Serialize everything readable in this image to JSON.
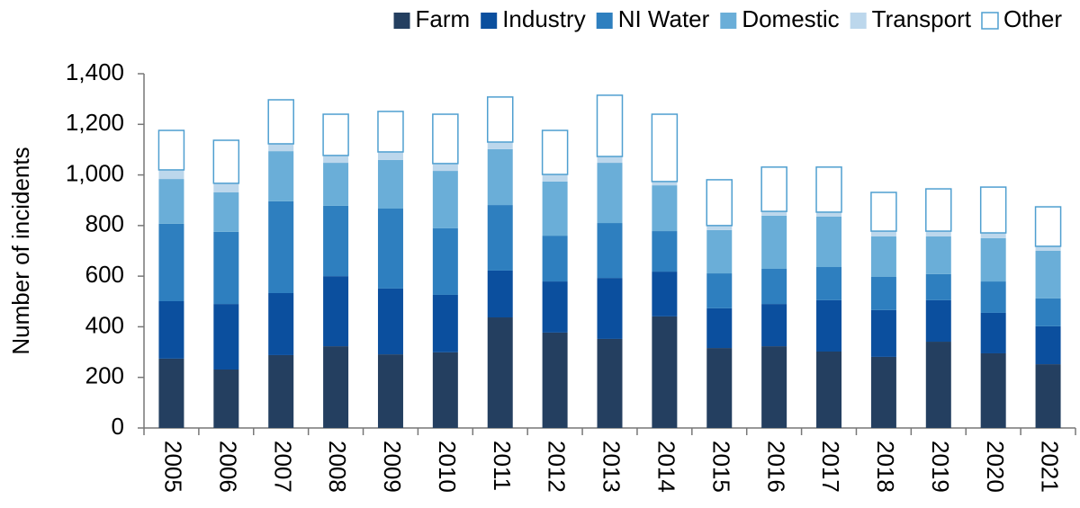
{
  "chart_data": {
    "type": "stacked_bar",
    "y_label": "Number of incidents",
    "categories": [
      "2005",
      "2006",
      "2007",
      "2008",
      "2009",
      "2010",
      "2011",
      "2012",
      "2013",
      "2014",
      "2015",
      "2016",
      "2017",
      "2018",
      "2019",
      "2020",
      "2021"
    ],
    "series": [
      {
        "name": "Farm",
        "color": "#243f60",
        "values": [
          274,
          231,
          288,
          323,
          291,
          299,
          437,
          377,
          352,
          441,
          316,
          323,
          302,
          281,
          341,
          295,
          252
        ]
      },
      {
        "name": "Industry",
        "color": "#0b4f9e",
        "values": [
          227,
          259,
          245,
          277,
          260,
          227,
          185,
          202,
          241,
          177,
          157,
          167,
          203,
          185,
          164,
          160,
          150
        ]
      },
      {
        "name": "NI Water",
        "color": "#2e7fbf",
        "values": [
          306,
          285,
          363,
          278,
          316,
          263,
          259,
          181,
          217,
          160,
          138,
          139,
          131,
          131,
          103,
          124,
          110
        ]
      },
      {
        "name": "Domestic",
        "color": "#6aaed8",
        "values": [
          177,
          156,
          198,
          170,
          192,
          227,
          221,
          214,
          238,
          181,
          171,
          210,
          199,
          160,
          149,
          171,
          188
        ]
      },
      {
        "name": "Transport",
        "color": "#bcd7ec",
        "values": [
          36,
          36,
          29,
          29,
          32,
          29,
          28,
          28,
          25,
          15,
          18,
          17,
          18,
          21,
          21,
          21,
          18
        ]
      },
      {
        "name": "Other",
        "color": "#4f9fd0",
        "style": "outline",
        "values": [
          156,
          170,
          174,
          163,
          160,
          195,
          178,
          174,
          242,
          266,
          181,
          175,
          178,
          153,
          167,
          181,
          156
        ]
      }
    ],
    "ylim": [
      0,
      1400
    ],
    "yticks": [
      0,
      200,
      400,
      600,
      800,
      {
        "value": 1000,
        "label": "1,000"
      },
      {
        "value": 1200,
        "label": "1,200"
      },
      {
        "value": 1400,
        "label": "1,400"
      }
    ],
    "legend": "top-right"
  }
}
